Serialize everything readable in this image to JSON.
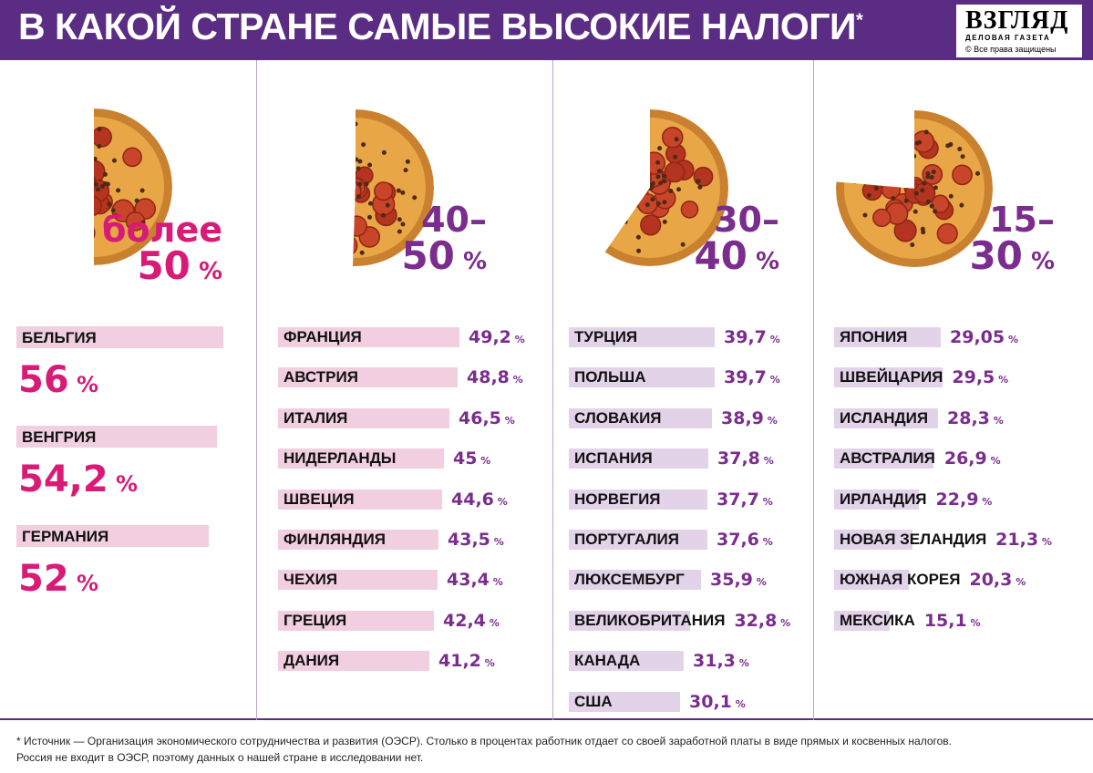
{
  "header": {
    "title": "В КАКОЙ СТРАНЕ САМЫЕ ВЫСОКИЕ НАЛОГИ",
    "title_mark": "*",
    "logo_name": "ВЗГЛЯД",
    "logo_subtitle": "ДЕЛОВАЯ ГАЗЕТА",
    "logo_copyright": "© Все права защищены"
  },
  "colors": {
    "header_bg": "#5b2c83",
    "pink": "#d81b77",
    "purple": "#7b2d8e",
    "pink_bar": "#f1cfe0",
    "purple_bar": "#e2d3e9"
  },
  "chart_data": {
    "type": "bar",
    "unit": "%",
    "groups": [
      {
        "range_line1": "более",
        "range_line2": "50",
        "range_unit": "%",
        "categories": [
          "БЕЛЬГИЯ",
          "ВЕНГРИЯ",
          "ГЕРМАНИЯ"
        ],
        "values": [
          56,
          54.2,
          52
        ],
        "labels": [
          "56",
          "54,2",
          "52"
        ]
      },
      {
        "range_line1": "40–",
        "range_line2": "50",
        "range_unit": "%",
        "categories": [
          "ФРАНЦИЯ",
          "АВСТРИЯ",
          "ИТАЛИЯ",
          "НИДЕРЛАНДЫ",
          "ШВЕЦИЯ",
          "ФИНЛЯНДИЯ",
          "ЧЕХИЯ",
          "ГРЕЦИЯ",
          "ДАНИЯ"
        ],
        "values": [
          49.2,
          48.8,
          46.5,
          45,
          44.6,
          43.5,
          43.4,
          42.4,
          41.2
        ],
        "labels": [
          "49,2",
          "48,8",
          "46,5",
          "45",
          "44,6",
          "43,5",
          "43,4",
          "42,4",
          "41,2"
        ]
      },
      {
        "range_line1": "30–",
        "range_line2": "40",
        "range_unit": "%",
        "categories": [
          "ТУРЦИЯ",
          "ПОЛЬША",
          "СЛОВАКИЯ",
          "ИСПАНИЯ",
          "НОРВЕГИЯ",
          "ПОРТУГАЛИЯ",
          "ЛЮКСЕМБУРГ",
          "ВЕЛИКОБРИТАНИЯ",
          "КАНАДА",
          "США"
        ],
        "values": [
          39.7,
          39.7,
          38.9,
          37.8,
          37.7,
          37.6,
          35.9,
          32.8,
          31.3,
          30.1
        ],
        "labels": [
          "39,7",
          "39,7",
          "38,9",
          "37,8",
          "37,7",
          "37,6",
          "35,9",
          "32,8",
          "31,3",
          "30,1"
        ]
      },
      {
        "range_line1": "15–",
        "range_line2": "30",
        "range_unit": "%",
        "categories": [
          "ЯПОНИЯ",
          "ШВЕЙЦАРИЯ",
          "ИСЛАНДИЯ",
          "АВСТРАЛИЯ",
          "ИРЛАНДИЯ",
          "НОВАЯ ЗЕЛАНДИЯ",
          "ЮЖНАЯ КОРЕЯ",
          "МЕКСИКА"
        ],
        "values": [
          29.05,
          29.5,
          28.3,
          26.9,
          22.9,
          21.3,
          20.3,
          15.1
        ],
        "labels": [
          "29,05",
          "29,5",
          "28,3",
          "26,9",
          "22,9",
          "21,3",
          "20,3",
          "15,1"
        ]
      }
    ]
  },
  "footnote": {
    "line1": "* Источник — Организация экономического сотрудничества и развития (ОЭСР). Столько в процентах работник отдает со своей заработной платы в виде прямых и косвенных налогов.",
    "line2": "Россия не входит в ОЭСР, поэтому данных о нашей стране в исследовании нет."
  }
}
